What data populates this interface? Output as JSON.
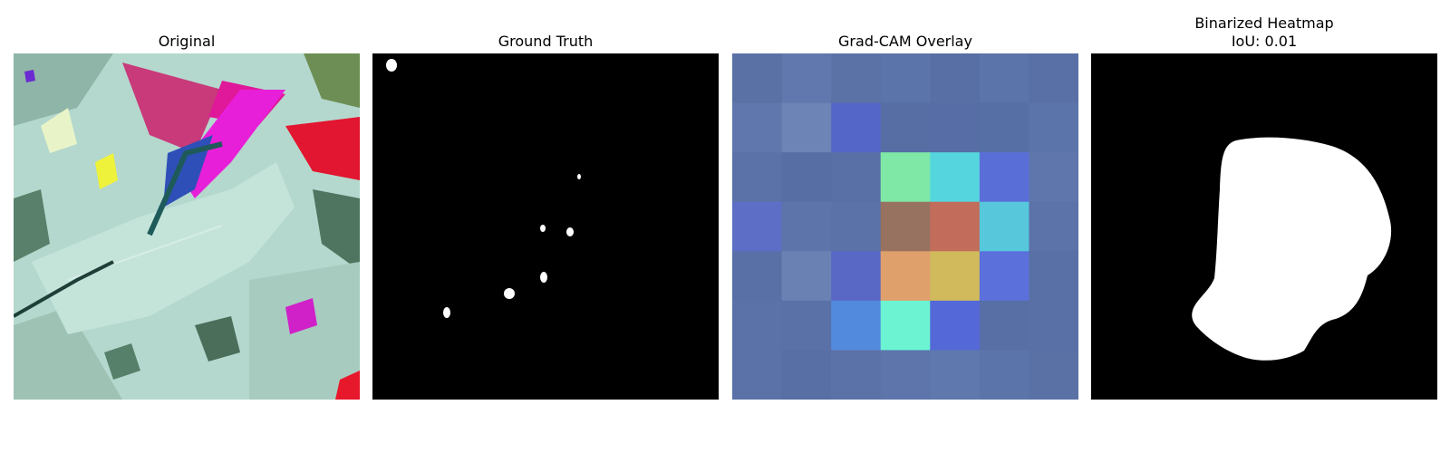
{
  "panels": [
    {
      "title": "Original",
      "subtitle": ""
    },
    {
      "title": "Ground Truth",
      "subtitle": ""
    },
    {
      "title": "Grad-CAM Overlay",
      "subtitle": ""
    },
    {
      "title": "Binarized Heatmap",
      "subtitle": "IoU: 0.01"
    }
  ],
  "gradcam_grid": [
    [
      "#5a71a6",
      "#6078ad",
      "#5b72a7",
      "#5b74a9",
      "#576fa5",
      "#5b74a9",
      "#5870a5"
    ],
    [
      "#5f77ac",
      "#6c84b6",
      "#5467c8",
      "#566ea4",
      "#566ea5",
      "#5670a6",
      "#5b74a9"
    ],
    [
      "#5b72a8",
      "#566ea4",
      "#5870a6",
      "#7fe8a6",
      "#55d6de",
      "#5a6ed8",
      "#5f76ac"
    ],
    [
      "#5d6ec6",
      "#5d74aa",
      "#5a72a7",
      "#987260",
      "#c26c5c",
      "#57c8dc",
      "#5b73a8"
    ],
    [
      "#5870a6",
      "#6a81b4",
      "#5868c4",
      "#e0a06c",
      "#d0ba5c",
      "#5c70dc",
      "#5870a5"
    ],
    [
      "#5b72a8",
      "#5a71a7",
      "#528ade",
      "#6cf4d2",
      "#5468d8",
      "#576fa5",
      "#5870a5"
    ],
    [
      "#5b72a8",
      "#576fa5",
      "#5b72a8",
      "#5d75ab",
      "#5f78ad",
      "#5b74a9",
      "#5a71a6"
    ]
  ],
  "colors": {
    "mask_bg": "#000000",
    "mask_fg": "#ffffff"
  }
}
